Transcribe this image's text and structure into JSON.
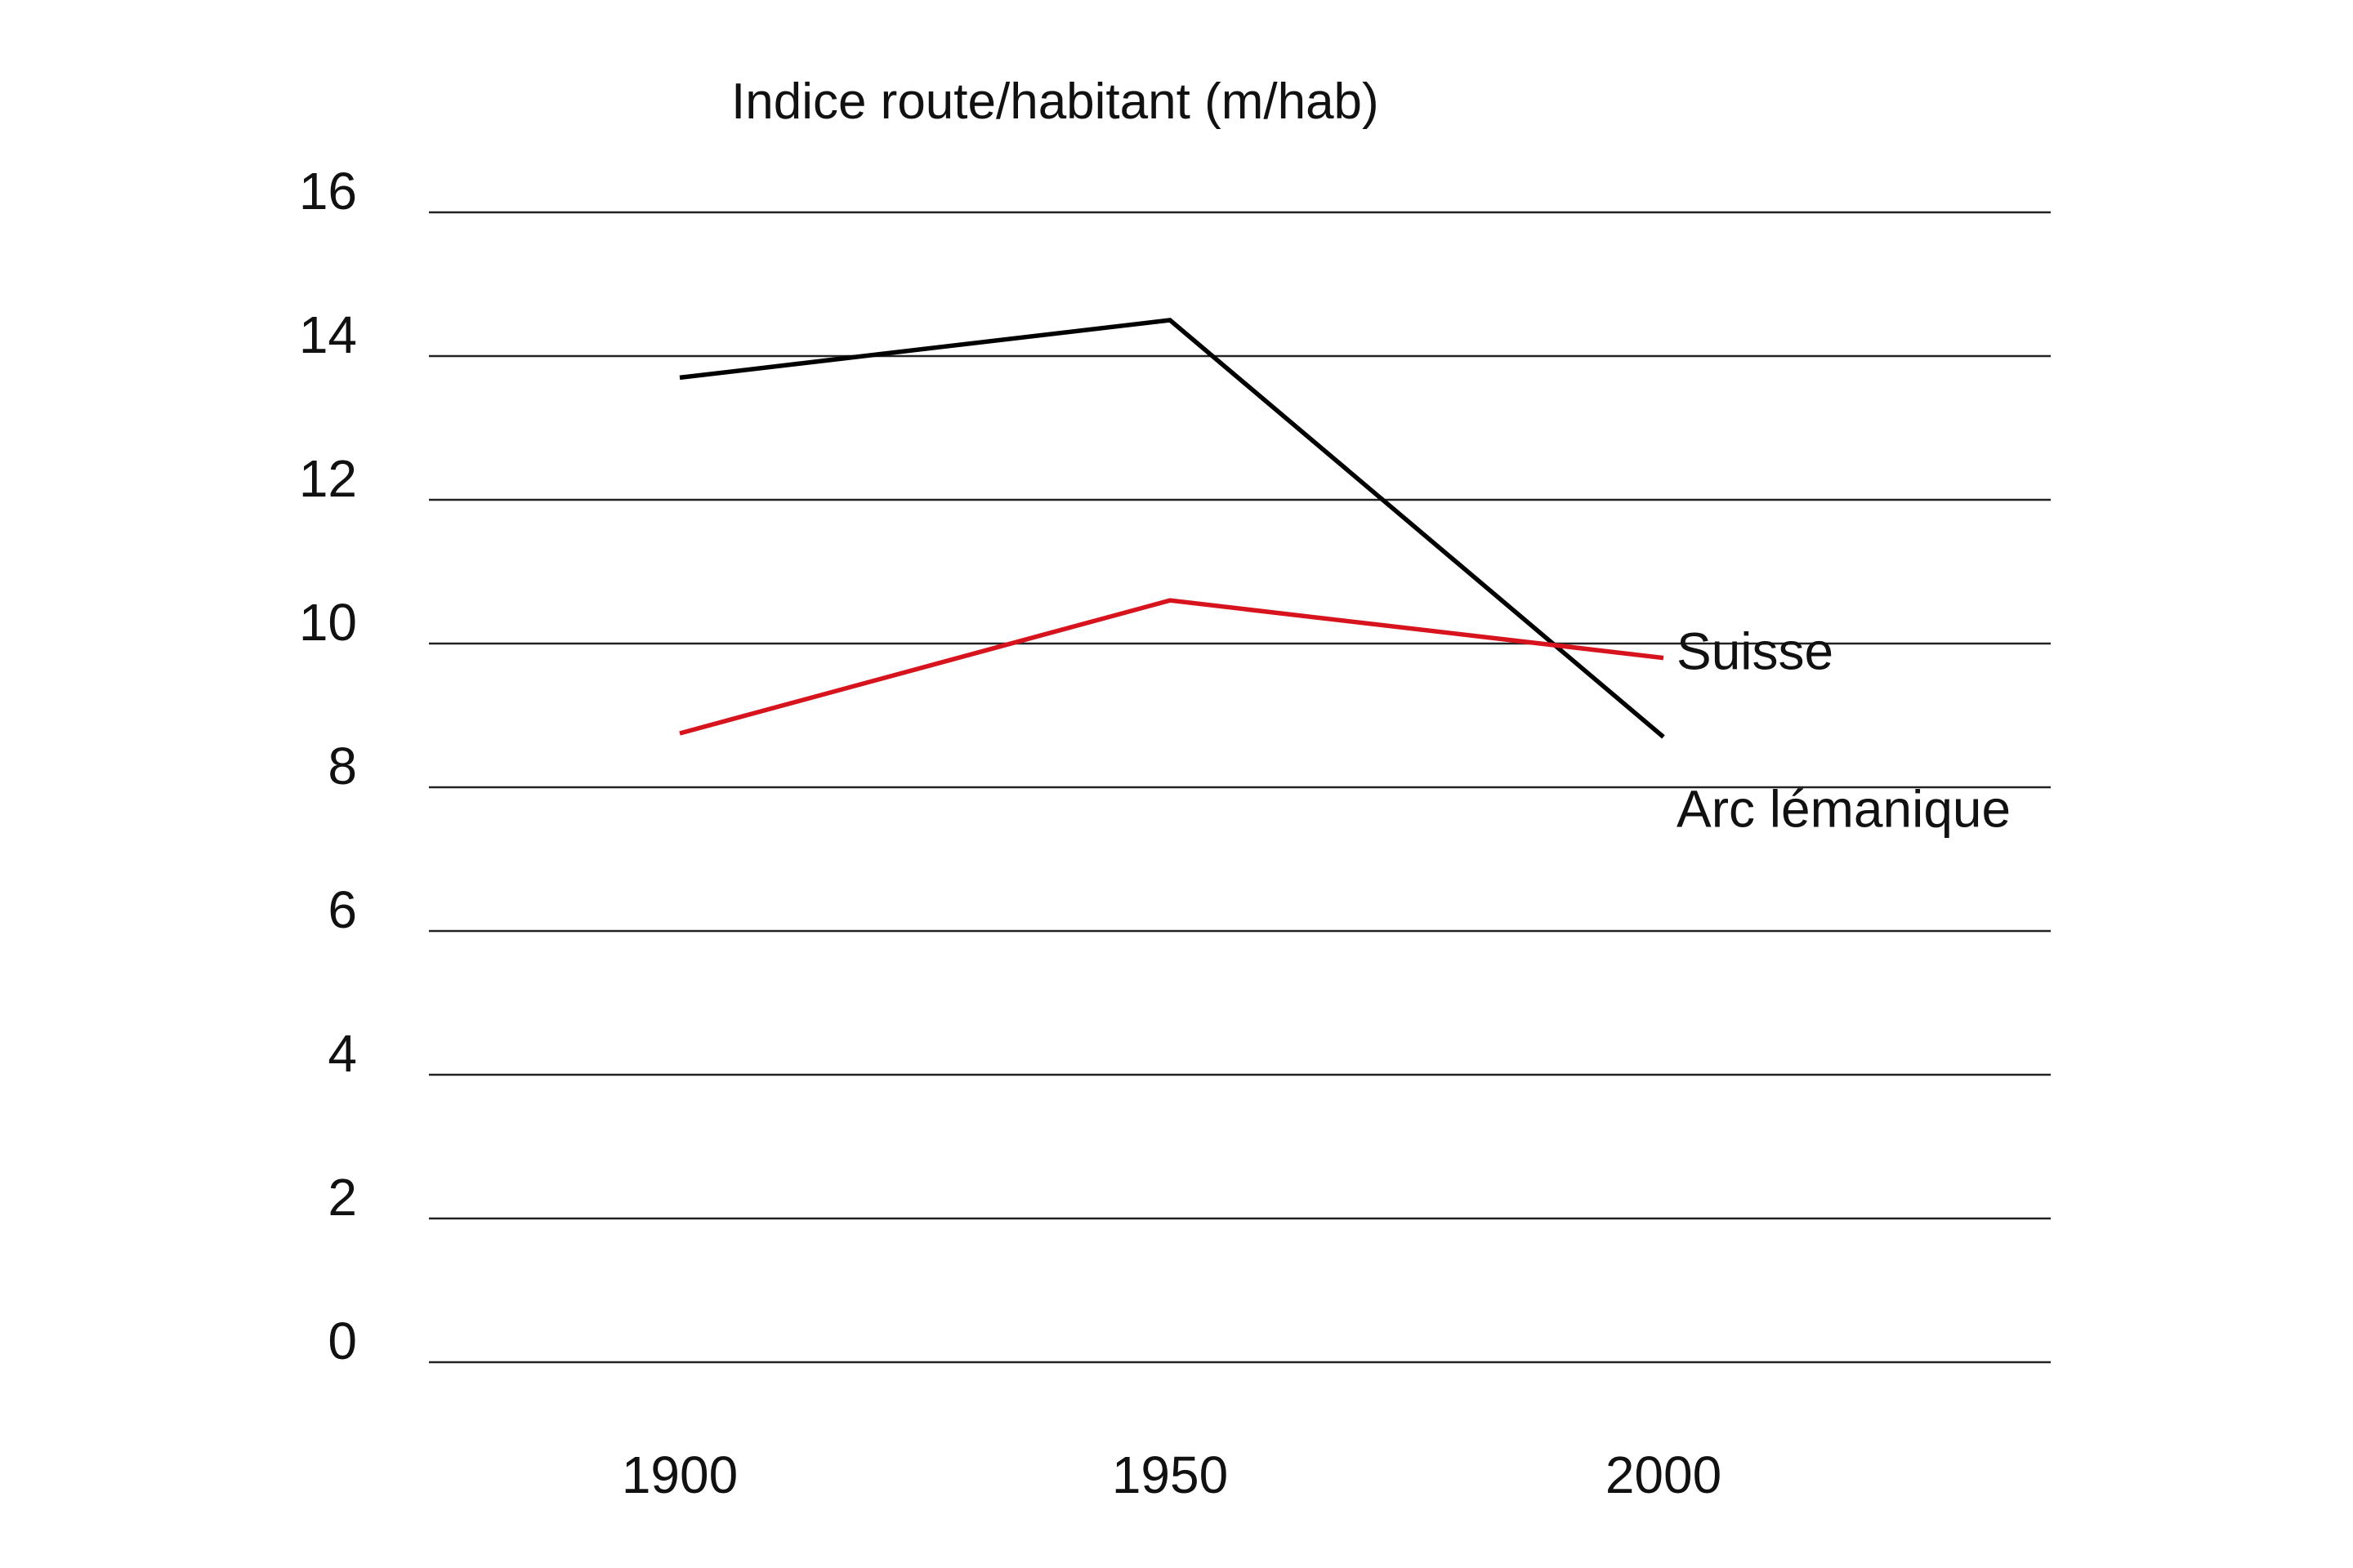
{
  "chart_data": {
    "type": "line",
    "title": "Indice route/habitant (m/hab)",
    "xlabel": "",
    "ylabel": "",
    "categories": [
      "1900",
      "1950",
      "2000"
    ],
    "yticks": [
      "0",
      "2",
      "4",
      "6",
      "8",
      "10",
      "12",
      "14",
      "16"
    ],
    "ylim": [
      0,
      16
    ],
    "grid": "horizontal",
    "legend": "direct labels at line ends",
    "series": [
      {
        "name": "Arc lémanique",
        "values": [
          13.7,
          14.5,
          8.7
        ],
        "color": "#000000"
      },
      {
        "name": "Suisse",
        "values": [
          8.75,
          10.6,
          9.8
        ],
        "color": "#d7141e"
      }
    ]
  }
}
